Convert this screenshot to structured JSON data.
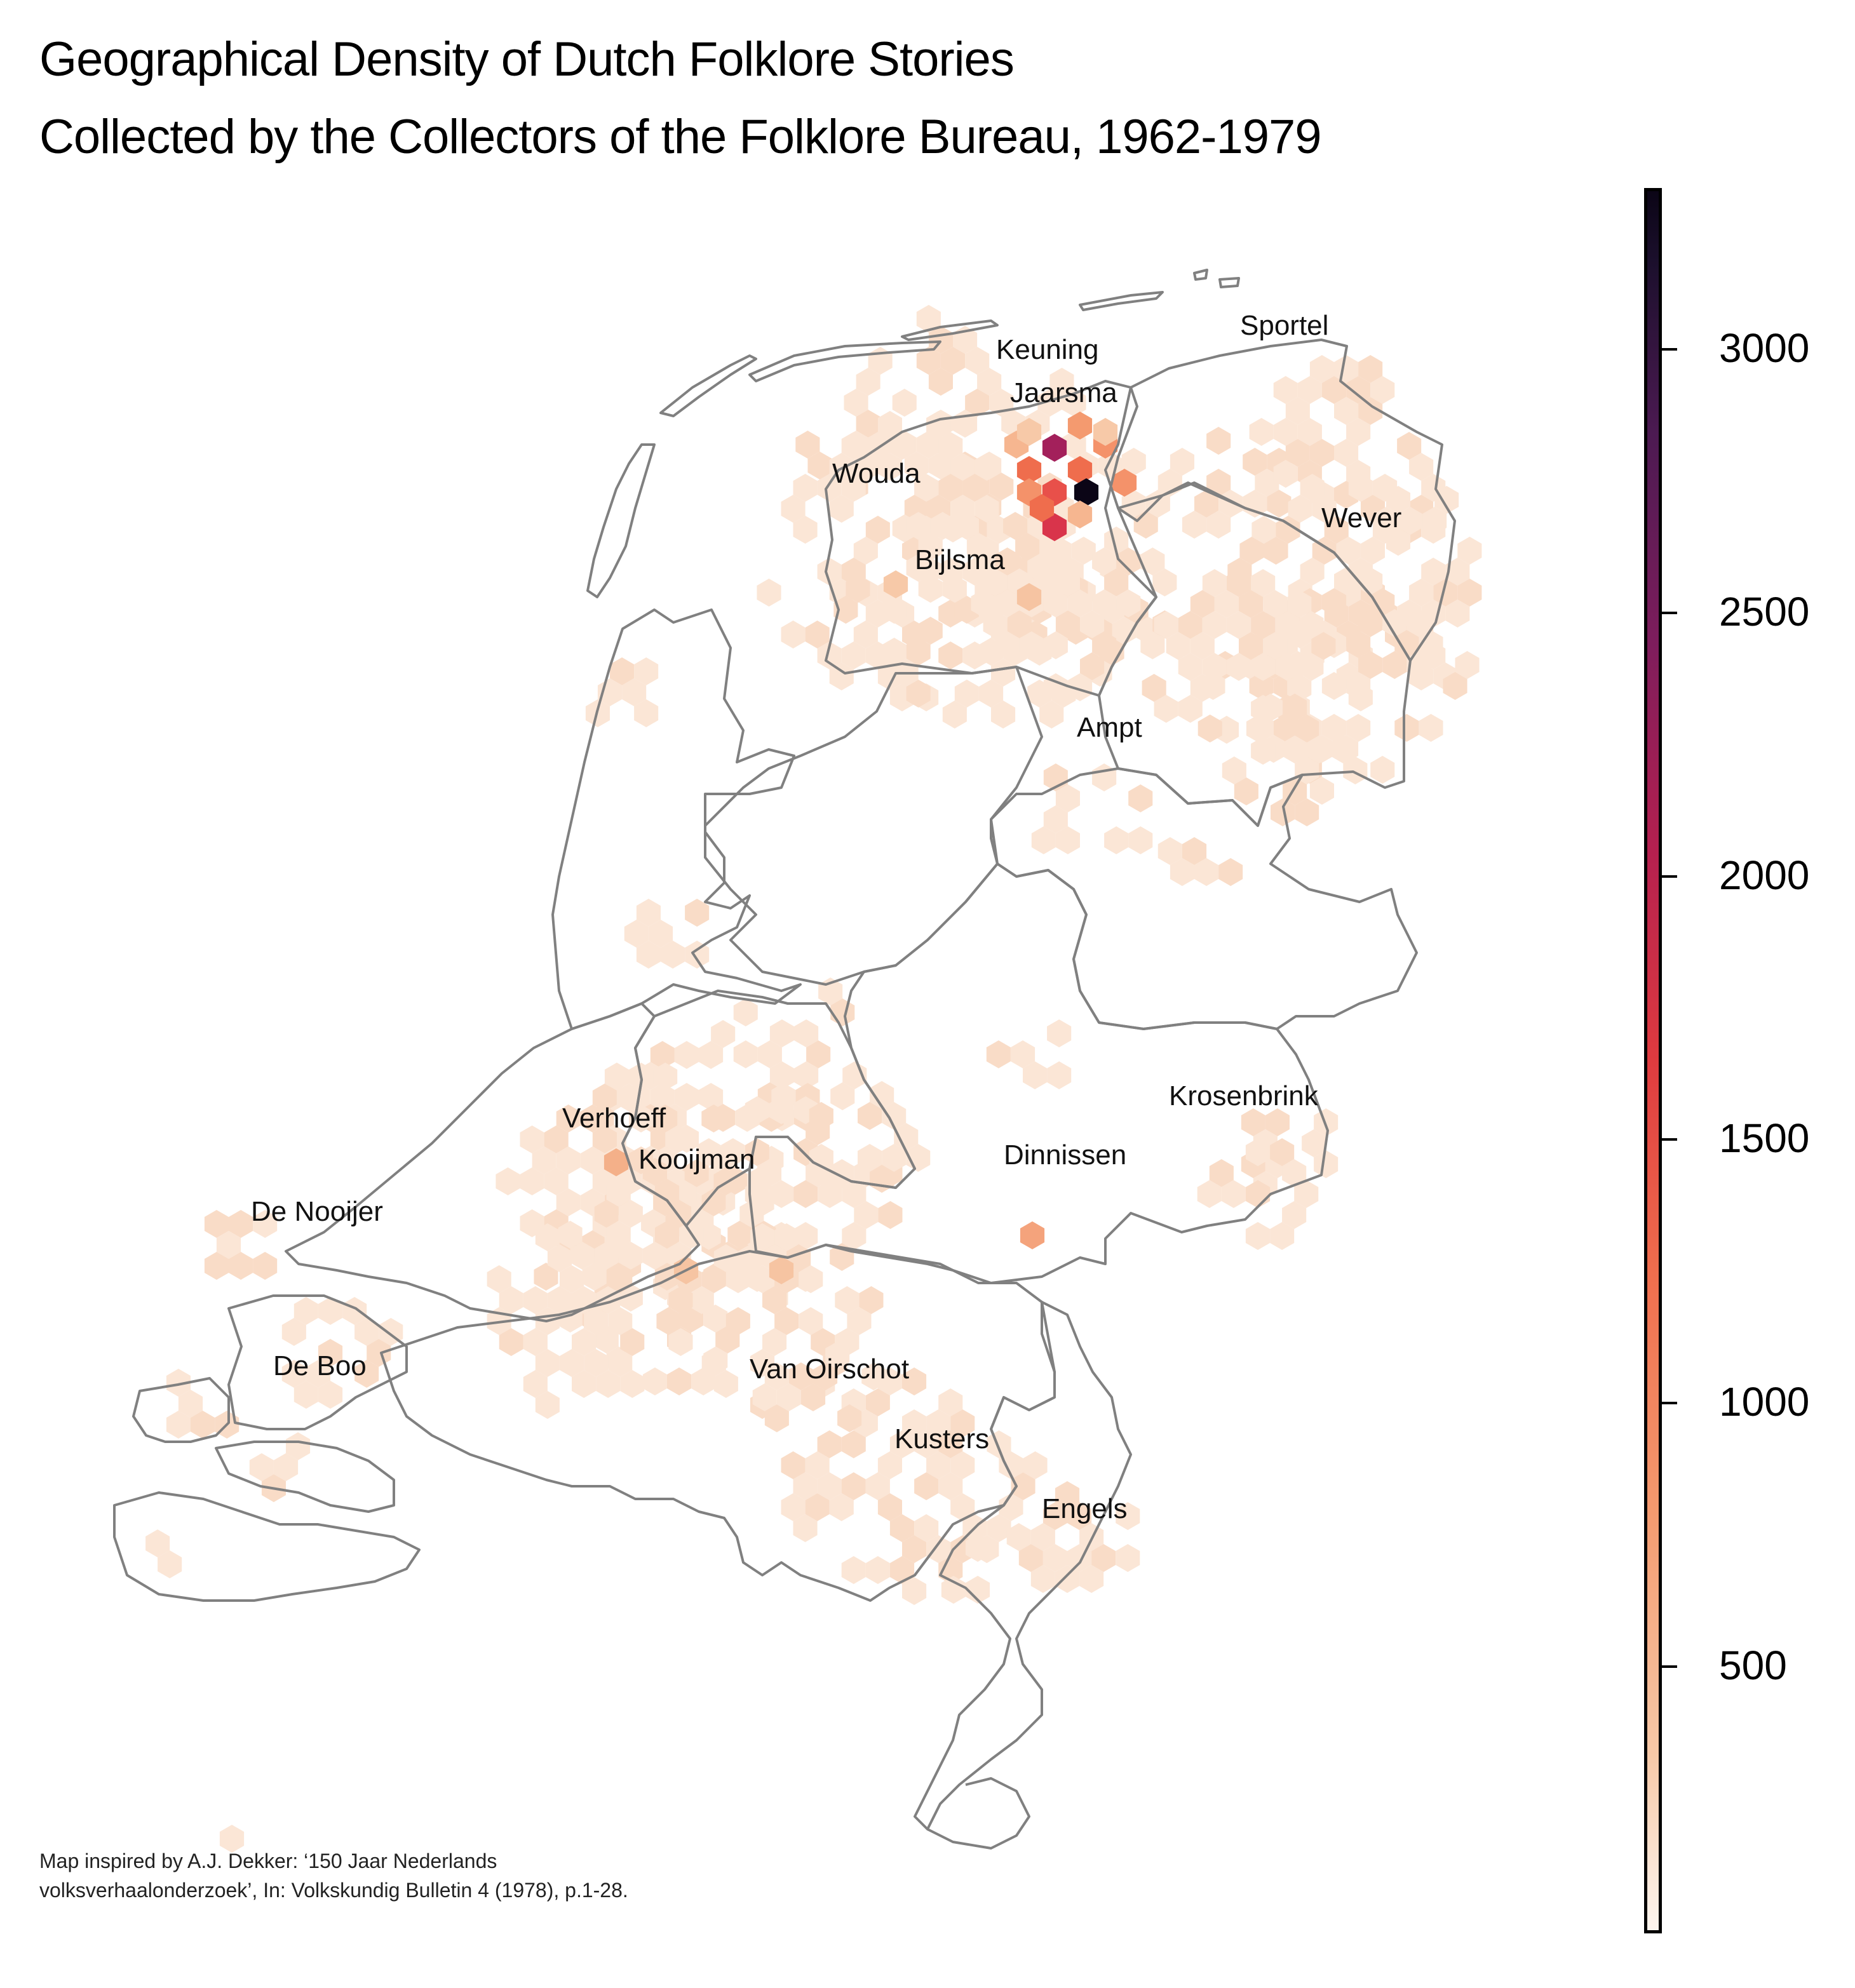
{
  "title": {
    "line1": "Geographical Density of Dutch Folklore Stories",
    "line2": "Collected by the Collectors of the Folklore Bureau, 1962-1979"
  },
  "credit": {
    "line1": "Map inspired by A.J. Dekker: ‘150 Jaar Nederlands",
    "line2": "volksverhaalonderzoek’, In: Volkskundig Bulletin 4 (1978), p.1-28."
  },
  "colorbar": {
    "min": 0,
    "max": 3300,
    "ticks": [
      "500",
      "1000",
      "1500",
      "2000",
      "2500",
      "3000"
    ]
  },
  "collectors": {
    "sportel": "Sportel",
    "keuning": "Keuning",
    "jaarsma": "Jaarsma",
    "wouda": "Wouda",
    "wever": "Wever",
    "bijlsma": "Bijlsma",
    "ampt": "Ampt",
    "krosenbrink": "Krosenbrink",
    "verhoeff": "Verhoeff",
    "kooijman": "Kooijman",
    "dinnissen": "Dinnissen",
    "de_nooijer": "De Nooijer",
    "de_boo": "De Boo",
    "van_oirschot": "Van Oirschot",
    "kusters": "Kusters",
    "engels": "Engels"
  },
  "colors": {
    "border": "#808080",
    "low": "#fdeee3",
    "high": "#0b0516"
  }
}
